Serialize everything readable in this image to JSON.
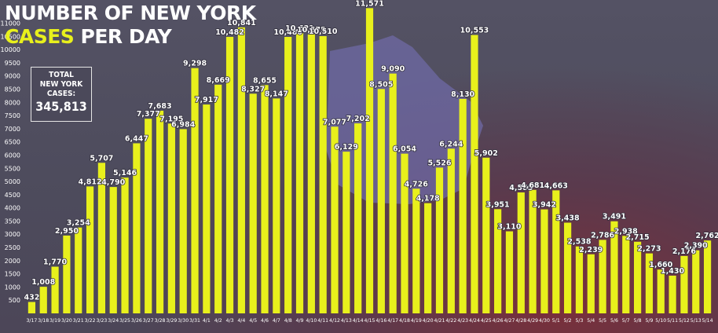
{
  "title": {
    "line1": "NUMBER OF NEW YORK",
    "line2_highlight": "CASES",
    "line2_rest": "PER DAY"
  },
  "total_box": {
    "line1": "TOTAL",
    "line2": "NEW YORK",
    "line3": "CASES:",
    "value": "345,813"
  },
  "colors": {
    "bar": "#e8f01c",
    "text": "#ffffff",
    "background": "#4e4c5d",
    "accent_red": "#7a2f3a"
  },
  "chart_data": {
    "type": "bar",
    "title": "NUMBER OF NEW YORK CASES PER DAY",
    "xlabel": "",
    "ylabel": "",
    "ylim": [
      0,
      11700
    ],
    "yticks": [
      500,
      1000,
      1500,
      2000,
      2500,
      3000,
      3500,
      4000,
      4500,
      5000,
      5500,
      6000,
      6500,
      7000,
      7500,
      8000,
      8500,
      9000,
      9500,
      10000,
      10500,
      11000
    ],
    "grid": false,
    "legend": "none",
    "categories": [
      "3/17",
      "3/18",
      "3/19",
      "3/20",
      "3/21",
      "3/22",
      "3/23",
      "3/24",
      "3/25",
      "3/26",
      "3/27",
      "3/28",
      "3/29",
      "3/30",
      "3/31",
      "4/1",
      "4/2",
      "4/3",
      "4/4",
      "4/5",
      "4/6",
      "4/7",
      "4/8",
      "4/9",
      "4/10",
      "4/11",
      "4/12",
      "4/13",
      "4/14",
      "4/15",
      "4/16",
      "4/17",
      "4/18",
      "4/19",
      "4/20",
      "4/21",
      "4/22",
      "4/23",
      "4/24",
      "4/25",
      "4/26",
      "4/27",
      "4/28",
      "4/29",
      "4/30",
      "5/1",
      "5/2",
      "5/3",
      "5/4",
      "5/5",
      "5/6",
      "5/7",
      "5/8",
      "5/9",
      "5/10",
      "5/11",
      "5/12",
      "5/13",
      "5/14"
    ],
    "values": [
      432,
      1008,
      1770,
      2950,
      3254,
      4812,
      5707,
      4790,
      5146,
      6447,
      7377,
      7683,
      7195,
      6984,
      9298,
      7917,
      8669,
      10482,
      10841,
      8327,
      8655,
      8147,
      10480,
      10621,
      10575,
      10510,
      7077,
      6129,
      7202,
      11571,
      8505,
      9090,
      6054,
      4726,
      4178,
      5526,
      6244,
      8130,
      10553,
      5902,
      3951,
      3110,
      4585,
      4681,
      3942,
      4663,
      3438,
      2538,
      2239,
      2786,
      3491,
      2938,
      2715,
      2273,
      1660,
      1430,
      2176,
      2390,
      2762
    ],
    "labels": [
      "432",
      "1,008",
      "1,770",
      "2,950",
      "3,254",
      "4,812",
      "5,707",
      "4,790",
      "5,146",
      "6,447",
      "7,377",
      "7,683",
      "7,195",
      "6,984",
      "9,298",
      "7,917",
      "8,669",
      "10,482",
      "10,841",
      "8,327",
      "8,655",
      "8,147",
      "10,480",
      "10,621",
      "10,575",
      "10,510",
      "7,077",
      "6,129",
      "7,202",
      "11,571",
      "8,505",
      "9,090",
      "6,054",
      "4,726",
      "4,178",
      "5,526",
      "6,244",
      "8,130",
      "10,553",
      "5,902",
      "3,951",
      "3,110",
      "4,585",
      "4,681",
      "3,942",
      "4,663",
      "3,438",
      "2,538",
      "2,239",
      "2,786",
      "3,491",
      "2,938",
      "2,715",
      "2,273",
      "1,660",
      "1,430",
      "2,176",
      "2,390",
      "2,762"
    ]
  }
}
